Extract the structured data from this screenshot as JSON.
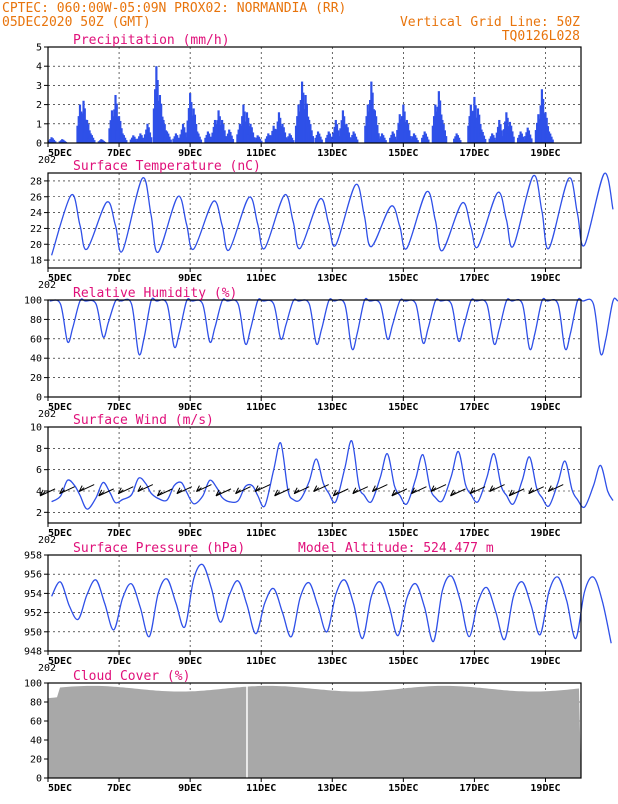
{
  "header": {
    "line1_left": "CPTEC:   060:00W-05:09N   PROX02: NORMANDIA (RR)",
    "line2_left": "05DEC2020 50Z (GMT)",
    "line2_right": "Vertical Grid Line: 50Z",
    "line3_right": "TQ0126L028"
  },
  "colors": {
    "header": "#e8740c",
    "title": "#e0107a",
    "series": "#2f50e8",
    "cloud": "#a8a8a8"
  },
  "chart_data": [
    {
      "type": "bar",
      "title": "Precipitation (mm/h)",
      "ylim": [
        0,
        5
      ],
      "yticks": [
        0,
        1,
        2,
        3,
        4,
        5
      ],
      "xlim": [
        0,
        15
      ],
      "xticks": [
        "5DEC",
        "7DEC",
        "9DEC",
        "11DEC",
        "13DEC",
        "15DEC",
        "17DEC",
        "19DEC"
      ],
      "x_cut_label": "202",
      "events": [
        [
          0.1,
          0.3
        ],
        [
          0.4,
          0.2
        ],
        [
          0.9,
          2.0
        ],
        [
          1.0,
          2.2
        ],
        [
          1.1,
          1.2
        ],
        [
          1.2,
          0.5
        ],
        [
          1.5,
          0.2
        ],
        [
          1.8,
          1.7
        ],
        [
          1.9,
          2.5
        ],
        [
          2.0,
          1.4
        ],
        [
          2.1,
          0.5
        ],
        [
          2.4,
          0.4
        ],
        [
          2.6,
          0.5
        ],
        [
          2.8,
          1.0
        ],
        [
          3.05,
          4.0
        ],
        [
          3.15,
          2.5
        ],
        [
          3.25,
          1.2
        ],
        [
          3.35,
          0.6
        ],
        [
          3.6,
          0.5
        ],
        [
          3.8,
          1.0
        ],
        [
          4.0,
          2.6
        ],
        [
          4.1,
          1.8
        ],
        [
          4.2,
          0.6
        ],
        [
          4.5,
          0.6
        ],
        [
          4.7,
          1.2
        ],
        [
          4.8,
          1.7
        ],
        [
          4.9,
          1.2
        ],
        [
          5.1,
          0.7
        ],
        [
          5.4,
          1.0
        ],
        [
          5.5,
          2.0
        ],
        [
          5.6,
          1.6
        ],
        [
          5.7,
          1.0
        ],
        [
          5.9,
          0.4
        ],
        [
          6.2,
          0.5
        ],
        [
          6.35,
          0.9
        ],
        [
          6.5,
          1.6
        ],
        [
          6.6,
          1.0
        ],
        [
          6.8,
          0.5
        ],
        [
          7.05,
          2.0
        ],
        [
          7.15,
          3.2
        ],
        [
          7.25,
          2.5
        ],
        [
          7.35,
          1.2
        ],
        [
          7.6,
          0.6
        ],
        [
          7.9,
          0.6
        ],
        [
          8.1,
          1.2
        ],
        [
          8.3,
          1.7
        ],
        [
          8.4,
          1.0
        ],
        [
          8.6,
          0.6
        ],
        [
          9.0,
          2.0
        ],
        [
          9.1,
          3.2
        ],
        [
          9.2,
          1.7
        ],
        [
          9.4,
          0.5
        ],
        [
          9.7,
          0.6
        ],
        [
          9.9,
          1.5
        ],
        [
          10.0,
          2.0
        ],
        [
          10.1,
          1.2
        ],
        [
          10.3,
          0.5
        ],
        [
          10.6,
          0.6
        ],
        [
          10.9,
          2.0
        ],
        [
          11.0,
          2.7
        ],
        [
          11.1,
          1.2
        ],
        [
          11.5,
          0.5
        ],
        [
          11.9,
          2.0
        ],
        [
          12.0,
          2.4
        ],
        [
          12.1,
          1.8
        ],
        [
          12.2,
          0.7
        ],
        [
          12.5,
          0.5
        ],
        [
          12.7,
          1.2
        ],
        [
          12.9,
          1.6
        ],
        [
          13.0,
          1.1
        ],
        [
          13.3,
          0.6
        ],
        [
          13.5,
          0.8
        ],
        [
          13.8,
          1.5
        ],
        [
          13.9,
          2.8
        ],
        [
          14.0,
          1.6
        ],
        [
          14.1,
          0.6
        ]
      ]
    },
    {
      "type": "line",
      "title": "Surface Temperature (nC)",
      "ylim": [
        17,
        29
      ],
      "yticks": [
        18,
        20,
        22,
        24,
        26,
        28
      ],
      "xlim": [
        0,
        15
      ],
      "xticks": [
        "5DEC",
        "7DEC",
        "9DEC",
        "11DEC",
        "13DEC",
        "15DEC",
        "17DEC",
        "19DEC"
      ],
      "x_cut_label": "202",
      "daily_min": [
        18.6,
        19.4,
        19.2,
        19.0,
        19.4,
        19.3,
        19.5,
        19.5,
        19.9,
        19.7,
        19.5,
        19.2,
        19.7,
        19.8,
        19.5,
        19.9
      ],
      "daily_max": [
        26.2,
        25.3,
        28.3,
        26.0,
        25.4,
        25.9,
        26.2,
        25.7,
        27.5,
        24.8,
        26.6,
        25.2,
        26.5,
        28.6,
        28.3,
        28.9
      ],
      "sample_hours": [
        5,
        18
      ]
    },
    {
      "type": "line",
      "title": "Relative Humidity (%)",
      "ylim": [
        0,
        100
      ],
      "yticks": [
        0,
        20,
        40,
        60,
        80,
        100
      ],
      "xlim": [
        0,
        15
      ],
      "xticks": [
        "5DEC",
        "7DEC",
        "9DEC",
        "11DEC",
        "13DEC",
        "15DEC",
        "17DEC",
        "19DEC"
      ],
      "x_cut_label": "202",
      "daily_min": [
        57,
        62,
        45,
        52,
        57,
        55,
        60,
        55,
        50,
        60,
        56,
        58,
        55,
        50,
        50,
        45,
        42
      ],
      "daily_max": [
        100,
        100,
        100,
        100,
        100,
        100,
        100,
        100,
        100,
        100,
        100,
        100,
        100,
        100,
        100,
        100,
        100
      ]
    },
    {
      "type": "line",
      "title": "Surface Wind (m/s)",
      "ylim": [
        1,
        10
      ],
      "yticks": [
        2,
        4,
        6,
        8,
        10
      ],
      "xlim": [
        0,
        15
      ],
      "xticks": [
        "5DEC",
        "7DEC",
        "9DEC",
        "11DEC",
        "13DEC",
        "15DEC",
        "17DEC",
        "19DEC"
      ],
      "x_cut_label": "202",
      "daily_peak": [
        5.0,
        4.8,
        5.2,
        4.5,
        5.0,
        4.4,
        8.5,
        7.0,
        8.7,
        7.5,
        7.4,
        7.7,
        7.5,
        7.2,
        6.8,
        6.4
      ],
      "daily_low": [
        3.0,
        2.3,
        3.2,
        3.3,
        2.8,
        3.0,
        2.6,
        3.2,
        3.0,
        3.0,
        2.8,
        3.1,
        3.0,
        2.8,
        2.6,
        2.5
      ],
      "barb_count": 27
    },
    {
      "type": "line",
      "title": "Surface Pressure (hPa)",
      "annotation": "Model Altitude: 524.477 m",
      "ylim": [
        948,
        958
      ],
      "yticks": [
        948,
        950,
        952,
        954,
        956,
        958
      ],
      "xlim": [
        0,
        15
      ],
      "xticks": [
        "5DEC",
        "7DEC",
        "9DEC",
        "11DEC",
        "13DEC",
        "15DEC",
        "17DEC",
        "19DEC"
      ],
      "x_cut_label": "202",
      "daily_peak": [
        955.2,
        955.4,
        955.0,
        955.5,
        957.0,
        955.3,
        954.5,
        955.1,
        955.4,
        955.2,
        955.0,
        955.8,
        954.6,
        955.2,
        955.7,
        955.7
      ],
      "daily_trough": [
        951.3,
        950.2,
        949.5,
        950.5,
        951.0,
        949.8,
        949.5,
        950.0,
        949.3,
        949.6,
        949.0,
        949.5,
        949.2,
        949.7,
        949.3,
        948.8
      ]
    },
    {
      "type": "area",
      "title": "Cloud Cover (%)",
      "ylim": [
        0,
        100
      ],
      "yticks": [
        0,
        20,
        40,
        60,
        80,
        100
      ],
      "xlim": [
        0,
        15
      ],
      "xticks": [
        "5DEC",
        "7DEC",
        "9DEC",
        "11DEC",
        "13DEC",
        "15DEC",
        "17DEC",
        "19DEC"
      ],
      "mean_cover": 94,
      "gap_day": 5.6
    }
  ]
}
